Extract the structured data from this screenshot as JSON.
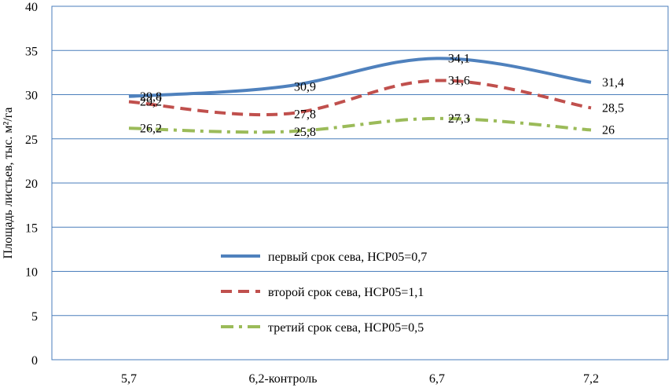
{
  "chart_data": {
    "type": "line",
    "title": "",
    "xlabel": "",
    "ylabel": "Площадь листьев, тыс. м²/га",
    "ylim": [
      0,
      40
    ],
    "ytick_step": 5,
    "yticks": [
      "0",
      "5",
      "10",
      "15",
      "20",
      "25",
      "30",
      "35",
      "40"
    ],
    "categories": [
      "5,7",
      "6,2-контроль",
      "6,7",
      "7,2"
    ],
    "grid": "horizontal",
    "legend_position": "center-right inside plot",
    "series": [
      {
        "name": "первый срок сева, НСР05=0,7",
        "values": [
          29.8,
          30.9,
          34.1,
          31.4
        ],
        "labels": [
          "29,8",
          "30,9",
          "34,1",
          "31,4"
        ],
        "color": "#4F81BD",
        "style": "solid"
      },
      {
        "name": "второй срок сева, НСР05=1,1",
        "values": [
          29.2,
          27.8,
          31.6,
          28.5
        ],
        "labels": [
          "29,2",
          "27,8",
          "31,6",
          "28,5"
        ],
        "color": "#C0504D",
        "style": "dash"
      },
      {
        "name": "третий срок сева, НСР05=0,5",
        "values": [
          26.2,
          25.8,
          27.3,
          26
        ],
        "labels": [
          "26,2",
          "25,8",
          "27,3",
          "26"
        ],
        "color": "#9BBB59",
        "style": "dashdot"
      }
    ]
  }
}
